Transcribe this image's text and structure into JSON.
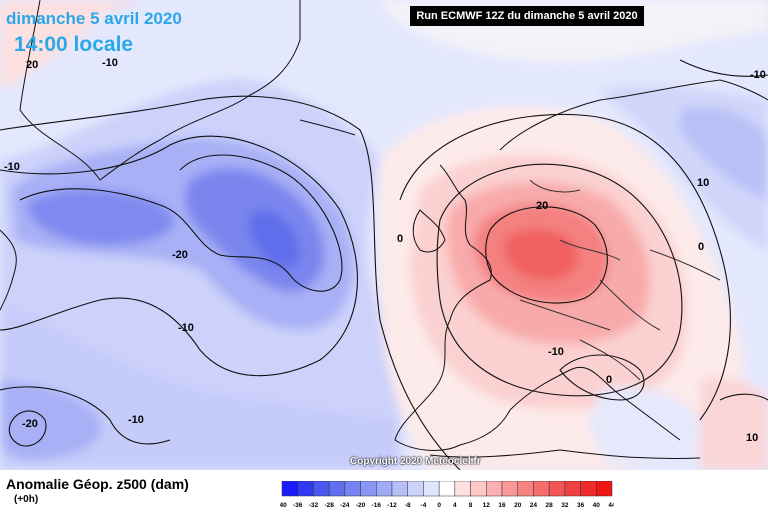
{
  "header": {
    "date": "dimanche 5 avril 2020",
    "time": "14:00 locale"
  },
  "run_label": "Run ECMWF 12Z du dimanche 5 avril 2020",
  "copyright": "Copyright 2020 Meteociel.fr",
  "legend": {
    "title": "Anomalie Géop. z500 (dam)",
    "subtitle": "(+0h)",
    "ticks": [
      "-40",
      "-36",
      "-32",
      "-28",
      "-24",
      "-20",
      "-16",
      "-12",
      "-8",
      "-4",
      "0",
      "4",
      "8",
      "12",
      "16",
      "20",
      "24",
      "28",
      "32",
      "36",
      "40",
      "44"
    ],
    "colors": [
      "#1a1aff",
      "#2e3bf2",
      "#4a5af0",
      "#6070f0",
      "#7584f2",
      "#8a96f4",
      "#a0aaf6",
      "#b6bef8",
      "#ccd2fa",
      "#e2e6fd",
      "#ffffff",
      "#fde0e0",
      "#fcc8c8",
      "#fab0b0",
      "#f89898",
      "#f68282",
      "#f46c6c",
      "#f25656",
      "#f04040",
      "#ee2a2a",
      "#ee1616"
    ]
  },
  "contour_labels": [
    {
      "text": "20",
      "name": "label-20-northwest"
    },
    {
      "text": "-10",
      "name": "label-minus10-greenland-south"
    },
    {
      "text": "-10",
      "name": "label-minus10-west"
    },
    {
      "text": "-20",
      "name": "label-minus20-atlantic"
    },
    {
      "text": "-10",
      "name": "label-minus10-central-atlantic"
    },
    {
      "text": "-20",
      "name": "label-minus20-southwest"
    },
    {
      "text": "-10",
      "name": "label-minus10-southwest"
    },
    {
      "text": "0",
      "name": "label-0-biscay"
    },
    {
      "text": "20",
      "name": "label-20-central-europe"
    },
    {
      "text": "-10",
      "name": "label-minus10-alps"
    },
    {
      "text": "0",
      "name": "label-0-italy"
    },
    {
      "text": "10",
      "name": "label-10-east"
    },
    {
      "text": "0",
      "name": "label-0-east"
    },
    {
      "text": "-10",
      "name": "label-minus10-northeast"
    },
    {
      "text": "10",
      "name": "label-10-southeast"
    }
  ]
}
